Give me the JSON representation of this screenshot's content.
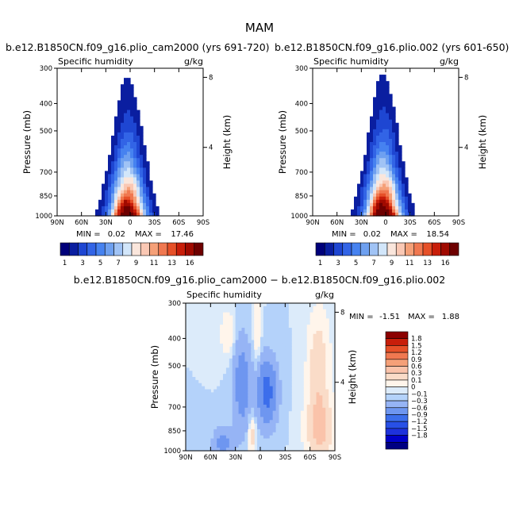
{
  "figure_title": "MAM",
  "colors": {
    "mean_scale": [
      "#00007a",
      "#0a1ea0",
      "#1e46d2",
      "#3264e6",
      "#4682f0",
      "#6ea0f0",
      "#a0c3f5",
      "#d2e6fa",
      "#fae6dc",
      "#fac8b4",
      "#f5a078",
      "#f07850",
      "#e65028",
      "#c81e0a",
      "#a00a00",
      "#6e0000"
    ],
    "diff_scale": [
      "#000082",
      "#0000c8",
      "#1e32dc",
      "#2850e6",
      "#3c6eeb",
      "#6e96f0",
      "#96b4f5",
      "#b4d2fa",
      "#dcebfa",
      "#fff5eb",
      "#fadcc8",
      "#fac3aa",
      "#f5a078",
      "#f07850",
      "#e65028",
      "#c81e0a",
      "#8c0000"
    ],
    "land_mask": "#ffffff"
  },
  "chart_data": [
    {
      "id": "left",
      "type": "heatmap",
      "title": "b.e12.B1850CN.f09_g16.plio_cam2000 (yrs 691-720)",
      "left_label": "Specific humidity",
      "right_label": "g/kg",
      "ylabel": "Pressure (mb)",
      "y2label": "Height (km)",
      "x_ticks": [
        "90N",
        "60N",
        "30N",
        "0",
        "30S",
        "60S",
        "90S"
      ],
      "y_ticks": [
        "300",
        "400",
        "500",
        "700",
        "850",
        "1000"
      ],
      "y2_ticks": [
        "8",
        "4"
      ],
      "min_label": "MIN =",
      "min": "0.02",
      "max_label": "MAX =",
      "max": "17.46",
      "peak_value": 17.46,
      "land_right": true,
      "colorbar_labels": [
        "1",
        "3",
        "5",
        "7",
        "9",
        "11",
        "13",
        "16"
      ]
    },
    {
      "id": "right",
      "type": "heatmap",
      "title": "b.e12.B1850CN.f09_g16.plio.002 (yrs 601-650)",
      "left_label": "Specific humidity",
      "right_label": "g/kg",
      "ylabel": "Pressure (mb)",
      "y2label": "Height (km)",
      "x_ticks": [
        "90N",
        "60N",
        "30N",
        "0",
        "30S",
        "60S",
        "90S"
      ],
      "y_ticks": [
        "300",
        "400",
        "500",
        "700",
        "850",
        "1000"
      ],
      "y2_ticks": [
        "8",
        "4"
      ],
      "min_label": "MIN =",
      "min": "0.02",
      "max_label": "MAX =",
      "max": "18.54",
      "peak_value": 18.54,
      "land_right": true,
      "colorbar_labels": [
        "1",
        "3",
        "5",
        "7",
        "9",
        "11",
        "13",
        "16"
      ]
    },
    {
      "id": "diff",
      "type": "heatmap",
      "title": "b.e12.B1850CN.f09_g16.plio_cam2000 − b.e12.B1850CN.f09_g16.plio.002",
      "left_label": "Specific humidity",
      "right_label": "g/kg",
      "ylabel": "Pressure (mb)",
      "y2label": "Height (km)",
      "x_ticks": [
        "90N",
        "60N",
        "30N",
        "0",
        "30S",
        "60S",
        "90S"
      ],
      "y_ticks": [
        "300",
        "400",
        "500",
        "700",
        "850",
        "1000"
      ],
      "y2_ticks": [
        "8",
        "4"
      ],
      "min_label": "MIN =",
      "min": "-1.51",
      "max_label": "MAX =",
      "max": "1.88",
      "colorbar_labels": [
        "1.8",
        "1.5",
        "1.2",
        "0.9",
        "0.6",
        "0.3",
        "0.1",
        "0",
        "−0.1",
        "−0.3",
        "−0.6",
        "−0.9",
        "−1.2",
        "−1.5",
        "−1.8"
      ]
    }
  ]
}
